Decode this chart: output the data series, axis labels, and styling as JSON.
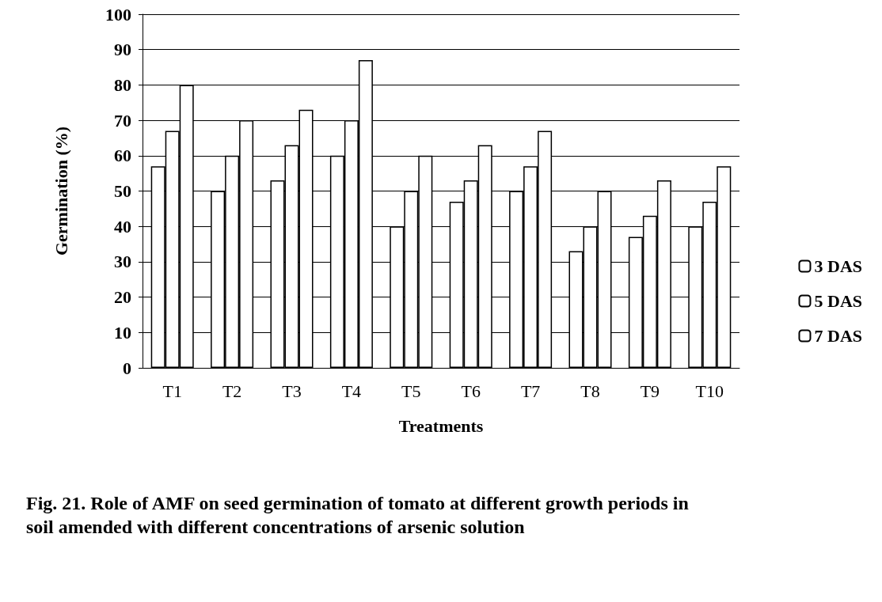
{
  "chart_data": {
    "type": "bar",
    "title": "Fig. 21. Role of AMF on seed germination of tomato at different growth periods in soil amended with different concentrations of arsenic solution",
    "xlabel": "Treatments",
    "ylabel": "Germination (%)",
    "categories": [
      "T1",
      "T2",
      "T3",
      "T4",
      "T5",
      "T6",
      "T7",
      "T8",
      "T9",
      "T10"
    ],
    "series": [
      {
        "name": "3 DAS",
        "color": "#ffffff",
        "values": [
          57,
          50,
          53,
          60,
          40,
          47,
          50,
          33,
          37,
          40
        ]
      },
      {
        "name": "5 DAS",
        "color": "#ffffff",
        "values": [
          67,
          60,
          63,
          70,
          50,
          53,
          57,
          40,
          43,
          47
        ]
      },
      {
        "name": "7 DAS",
        "color": "#ffffff",
        "values": [
          80,
          70,
          73,
          87,
          60,
          63,
          67,
          50,
          53,
          57
        ]
      }
    ],
    "ylim": [
      0,
      100
    ],
    "yticks": [
      0,
      10,
      20,
      30,
      40,
      50,
      60,
      70,
      80,
      90,
      100
    ],
    "grid": "y",
    "legend": "right"
  }
}
